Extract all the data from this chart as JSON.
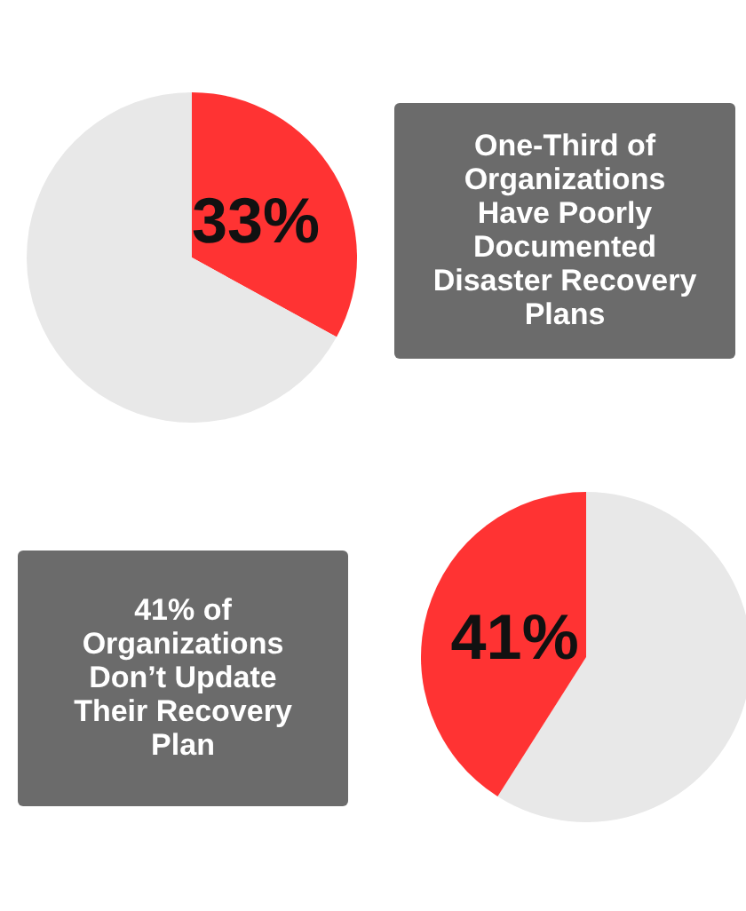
{
  "chart_data": [
    {
      "type": "pie",
      "title": "One-Third of Organizations Have Poorly Documented Disaster Recovery Plans",
      "categories": [
        null,
        null
      ],
      "values": [
        33,
        67
      ],
      "colors": [
        "#ff3333",
        "#e8e8e8"
      ],
      "value_labels": [
        "33%",
        null
      ]
    },
    {
      "type": "pie",
      "title": "41% of Organizations Don’t Update Their Recovery Plan",
      "categories": [
        null,
        null
      ],
      "values": [
        59,
        41
      ],
      "colors": [
        "#e8e8e8",
        "#ff3333"
      ],
      "value_labels": [
        null,
        "41%"
      ]
    }
  ]
}
